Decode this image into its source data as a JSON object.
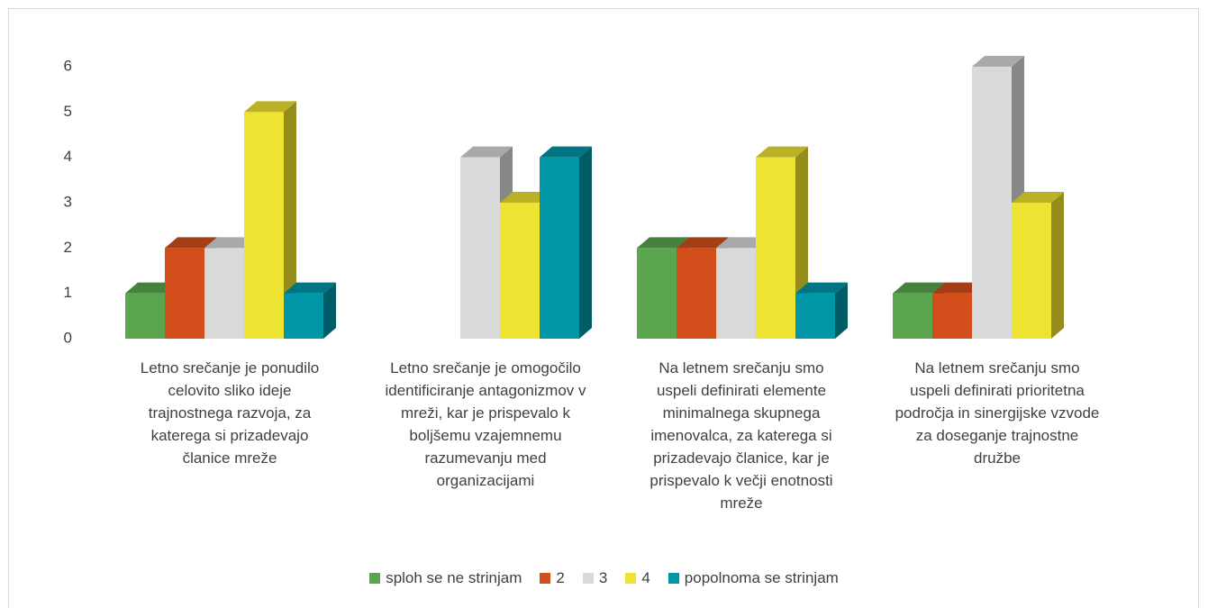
{
  "chart_data": {
    "type": "bar3d",
    "categories": [
      "Letno srečanje je ponudilo celovito sliko ideje trajnostnega razvoja, za katerega si prizadevajo članice mreže",
      "Letno srečanje je omogočilo identificiranje antagonizmov v mreži, kar je prispevalo k boljšemu vzajemnemu razumevanju med organizacijami",
      "Na letnem srečanju smo uspeli definirati elemente minimalnega skupnega imenovalca, za katerega si prizadevajo članice, kar je prispevalo k večji enotnosti mreže",
      "Na letnem srečanju smo uspeli definirati prioritetna področja in sinergijske vzvode za doseganje trajnostne družbe"
    ],
    "series": [
      {
        "name": "sploh se ne strinjam",
        "color": "#5ba54f",
        "values": [
          1,
          0,
          2,
          1
        ]
      },
      {
        "name": "2",
        "color": "#d24f1c",
        "values": [
          2,
          0,
          2,
          1
        ]
      },
      {
        "name": "3",
        "color": "#d9d9d9",
        "values": [
          2,
          4,
          2,
          6
        ]
      },
      {
        "name": "4",
        "color": "#eee330",
        "values": [
          5,
          3,
          4,
          3
        ]
      },
      {
        "name": "popolnoma se strinjam",
        "color": "#0096a8",
        "values": [
          1,
          4,
          1,
          0
        ]
      }
    ],
    "ylim": [
      0,
      6
    ],
    "yticks": [
      0,
      1,
      2,
      3,
      4,
      5,
      6
    ],
    "legend": "bottom"
  }
}
